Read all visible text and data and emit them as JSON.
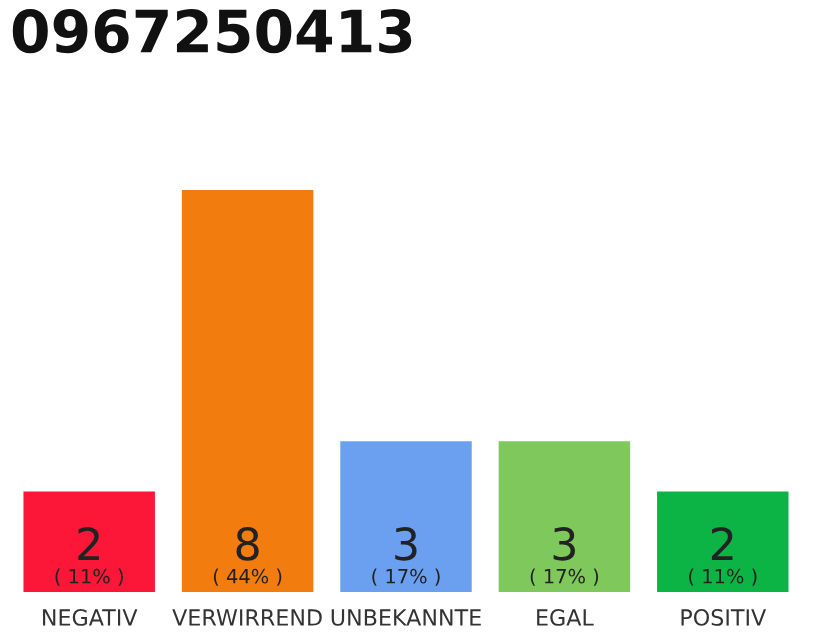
{
  "chart_data": {
    "type": "bar",
    "title": "0967250413",
    "categories": [
      "NEGATIV",
      "VERWIRREND",
      "UNBEKANNTE",
      "EGAL",
      "POSITIV"
    ],
    "values": [
      2,
      8,
      3,
      3,
      2
    ],
    "colors": [
      "#fc1638",
      "#f27d0e",
      "#6ba0f0",
      "#7ec85c",
      "#0cb446"
    ],
    "data_labels": true,
    "annotations": [
      "( 11% )",
      "( 44% )",
      "( 17% )",
      "( 17% )",
      "( 11% )"
    ],
    "grid": false,
    "legend": false
  }
}
